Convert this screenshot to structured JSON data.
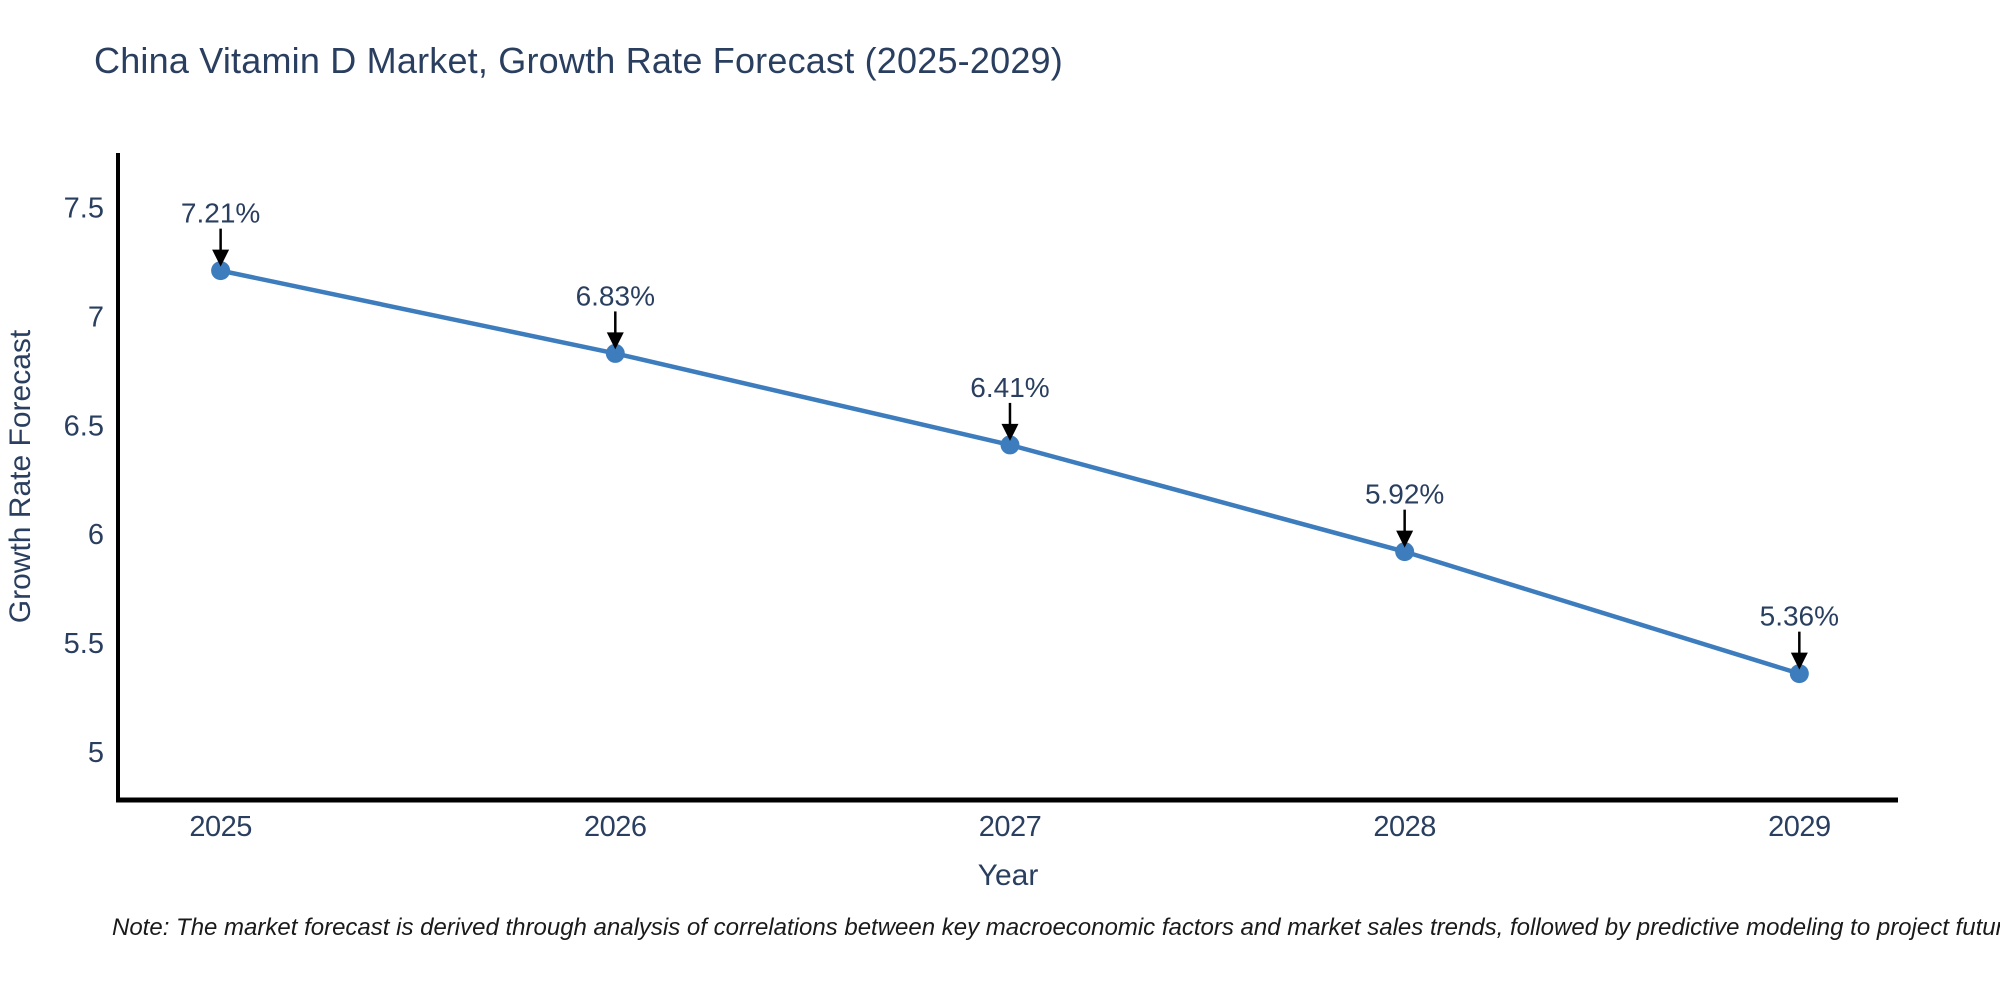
{
  "page": {
    "title": "China Vitamin D Market, Growth Rate Forecast (2025-2029)",
    "note": "Note: The market forecast is derived through analysis of correlations between key macroeconomic factors and market sales trends, followed by predictive modeling to project future sales"
  },
  "chart_data": {
    "type": "line",
    "title": "China Vitamin D Market, Growth Rate Forecast (2025-2029)",
    "xlabel": "Year",
    "ylabel": "Growth Rate Forecast",
    "x": [
      2025,
      2026,
      2027,
      2028,
      2029
    ],
    "series": [
      {
        "name": "Growth Rate Forecast",
        "values": [
          7.21,
          6.83,
          6.41,
          5.92,
          5.36
        ]
      }
    ],
    "point_labels": [
      "7.21%",
      "6.83%",
      "6.41%",
      "5.92%",
      "5.36%"
    ],
    "xticks": [
      "2025",
      "2026",
      "2027",
      "2028",
      "2029"
    ],
    "yticks": [
      "7.5",
      "7",
      "6.5",
      "6",
      "5.5",
      "5"
    ],
    "xlim": [
      2024.74,
      2029.25
    ],
    "ylim": [
      4.78,
      7.75
    ],
    "grid": false,
    "legend_position": "none",
    "annotation_style": "black downward arrows from percent labels to markers",
    "colors": {
      "line": "#3e7dbd",
      "marker": "#3e7dbd",
      "axis": "#000000",
      "arrow": "#000000",
      "text": "#2a3f5f",
      "note_text": "#1a1a1a",
      "background": "#ffffff"
    }
  }
}
